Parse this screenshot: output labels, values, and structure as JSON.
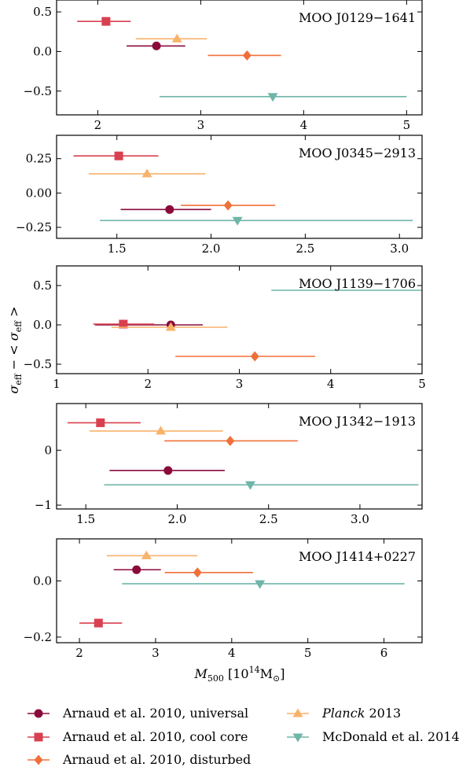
{
  "figure": {
    "xlabel": "M500 [10^14 M⊙]",
    "ylabel": "σeff − < σeff >"
  },
  "legend": [
    {
      "label": "Arnaud et al. 2010, universal",
      "italic_prefix": "",
      "color": "#8b0a3c",
      "marker": "circle"
    },
    {
      "label": "Arnaud et al. 2010, cool core",
      "italic_prefix": "",
      "color": "#d9404f",
      "marker": "square"
    },
    {
      "label": "Arnaud et al. 2010, disturbed",
      "italic_prefix": "",
      "color": "#f0703a",
      "marker": "diamond"
    },
    {
      "label": " 2013",
      "italic_prefix": "Planck",
      "color": "#f8b26a",
      "marker": "triangle-up"
    },
    {
      "label": "McDonald et al. 2014",
      "color": "#6fb5a8",
      "marker": "triangle-down",
      "italic_prefix": ""
    }
  ],
  "chart_data": [
    {
      "type": "scatter",
      "title": "MOO J0129−1641",
      "xlim": [
        1.6,
        5.15
      ],
      "ylim": [
        -0.8,
        0.65
      ],
      "xticks": [
        2,
        3,
        4,
        5
      ],
      "yticks": [
        0.5,
        0.0,
        -0.5
      ],
      "ytick_labels": [
        "0.5",
        "0.0",
        "−0.5"
      ],
      "points": [
        {
          "series": "cool core",
          "x": 2.08,
          "xlo": 1.8,
          "xhi": 2.32,
          "y": 0.38
        },
        {
          "series": "planck",
          "x": 2.77,
          "xlo": 2.37,
          "xhi": 3.06,
          "y": 0.16
        },
        {
          "series": "universal",
          "x": 2.57,
          "xlo": 2.28,
          "xhi": 2.85,
          "y": 0.07
        },
        {
          "series": "disturbed",
          "x": 3.45,
          "xlo": 3.07,
          "xhi": 3.78,
          "y": -0.05
        },
        {
          "series": "mcdonald",
          "x": 3.7,
          "xlo": 2.6,
          "xhi": 5.0,
          "y": -0.57
        }
      ]
    },
    {
      "type": "scatter",
      "title": "MOO J0345−2913",
      "xlim": [
        1.18,
        3.12
      ],
      "ylim": [
        -0.33,
        0.42
      ],
      "xticks": [
        1.5,
        2.0,
        2.5,
        3.0
      ],
      "yticks": [
        0.25,
        0.0,
        -0.25
      ],
      "ytick_labels": [
        "0.25",
        "0.00",
        "−0.25"
      ],
      "points": [
        {
          "series": "cool core",
          "x": 1.51,
          "xlo": 1.27,
          "xhi": 1.72,
          "y": 0.27
        },
        {
          "series": "planck",
          "x": 1.66,
          "xlo": 1.35,
          "xhi": 1.97,
          "y": 0.14
        },
        {
          "series": "disturbed",
          "x": 2.09,
          "xlo": 1.84,
          "xhi": 2.34,
          "y": -0.09
        },
        {
          "series": "universal",
          "x": 1.78,
          "xlo": 1.52,
          "xhi": 2.0,
          "y": -0.12
        },
        {
          "series": "mcdonald",
          "x": 2.14,
          "xlo": 1.41,
          "xhi": 3.07,
          "y": -0.2
        }
      ]
    },
    {
      "type": "scatter",
      "title": "MOO J1139−1706",
      "xlim": [
        1.0,
        5.0
      ],
      "ylim": [
        -0.62,
        0.75
      ],
      "xticks": [
        1,
        2,
        3,
        4,
        5
      ],
      "yticks": [
        0.5,
        0.0,
        -0.5
      ],
      "ytick_labels": [
        "0.5",
        "0.0",
        "−0.5"
      ],
      "points": [
        {
          "series": "mcdonald",
          "x": 5.2,
          "xlo": 3.35,
          "xhi": 7.0,
          "y": 0.44
        },
        {
          "series": "universal",
          "x": 2.25,
          "xlo": 1.42,
          "xhi": 2.6,
          "y": 0.0
        },
        {
          "series": "cool core",
          "x": 1.73,
          "xlo": 1.4,
          "xhi": 2.07,
          "y": 0.01
        },
        {
          "series": "planck",
          "x": 2.25,
          "xlo": 1.6,
          "xhi": 2.87,
          "y": -0.03
        },
        {
          "series": "disturbed",
          "x": 3.17,
          "xlo": 2.3,
          "xhi": 3.83,
          "y": -0.4
        }
      ]
    },
    {
      "type": "scatter",
      "title": "MOO J1342−1913",
      "xlim": [
        1.34,
        3.34
      ],
      "ylim": [
        -1.07,
        0.85
      ],
      "xticks": [
        1.5,
        2.0,
        2.5,
        3.0
      ],
      "yticks": [
        0,
        -1
      ],
      "ytick_labels": [
        "0",
        "−1"
      ],
      "points": [
        {
          "series": "cool core",
          "x": 1.58,
          "xlo": 1.4,
          "xhi": 1.8,
          "y": 0.5
        },
        {
          "series": "planck",
          "x": 1.91,
          "xlo": 1.52,
          "xhi": 2.25,
          "y": 0.35
        },
        {
          "series": "disturbed",
          "x": 2.29,
          "xlo": 1.93,
          "xhi": 2.66,
          "y": 0.17
        },
        {
          "series": "universal",
          "x": 1.95,
          "xlo": 1.63,
          "xhi": 2.26,
          "y": -0.37
        },
        {
          "series": "mcdonald",
          "x": 2.4,
          "xlo": 1.6,
          "xhi": 3.32,
          "y": -0.63
        }
      ]
    },
    {
      "type": "scatter",
      "title": "MOO J1414+0227",
      "xlim": [
        1.7,
        6.5
      ],
      "ylim": [
        -0.22,
        0.15
      ],
      "xticks": [
        2,
        3,
        4,
        5,
        6
      ],
      "yticks": [
        0.0,
        -0.2
      ],
      "ytick_labels": [
        "0.0",
        "−0.2"
      ],
      "points": [
        {
          "series": "planck",
          "x": 2.88,
          "xlo": 2.36,
          "xhi": 3.55,
          "y": 0.09
        },
        {
          "series": "universal",
          "x": 2.75,
          "xlo": 2.45,
          "xhi": 3.07,
          "y": 0.04
        },
        {
          "series": "disturbed",
          "x": 3.55,
          "xlo": 3.12,
          "xhi": 4.28,
          "y": 0.03
        },
        {
          "series": "mcdonald",
          "x": 4.37,
          "xlo": 2.56,
          "xhi": 6.27,
          "y": -0.01
        },
        {
          "series": "cool core",
          "x": 2.25,
          "xlo": 2.0,
          "xhi": 2.56,
          "y": -0.15
        }
      ]
    }
  ]
}
